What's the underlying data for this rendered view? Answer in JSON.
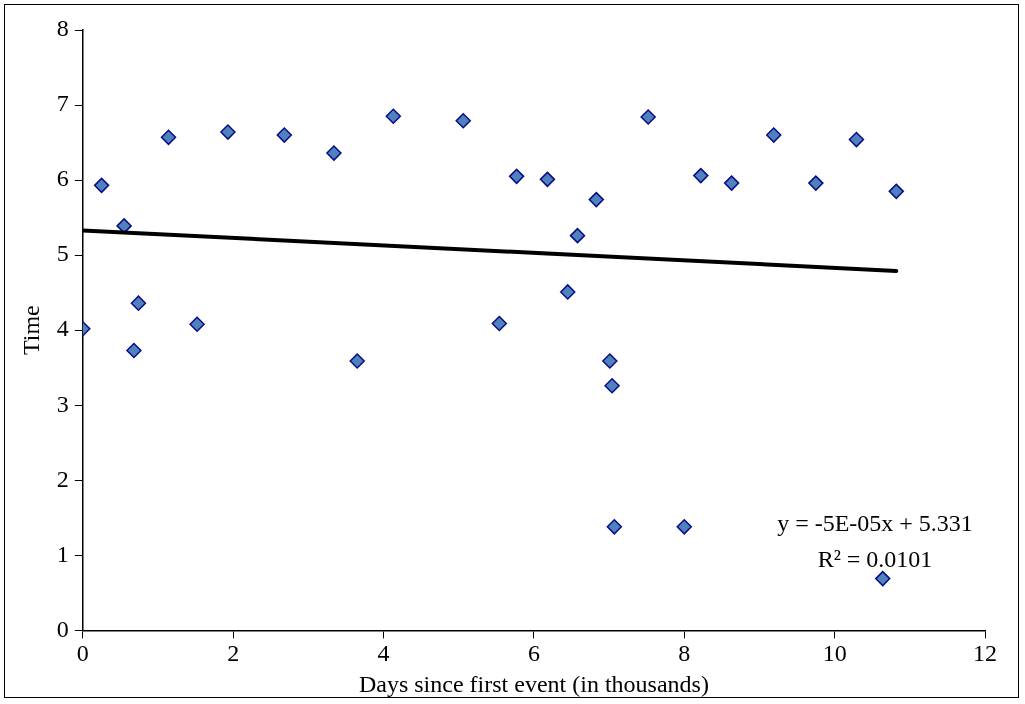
{
  "chart_data": {
    "type": "scatter",
    "xlabel": "Days since first event (in thousands)",
    "ylabel": "Time",
    "xlim": [
      0,
      12
    ],
    "xticks": [
      0,
      2,
      4,
      6,
      8,
      10,
      12
    ],
    "ylim": [
      0,
      8
    ],
    "yticks": [
      0,
      1,
      2,
      3,
      4,
      5,
      6,
      7,
      8
    ],
    "grid": false,
    "legend": false,
    "marker": "diamond",
    "annotations": [
      "y = -5E-05x + 5.331",
      "R² = 0.0101"
    ],
    "series": [
      {
        "color": "#4f81bd",
        "x": [
          0.0,
          0.25,
          0.55,
          0.68,
          0.74,
          1.14,
          1.52,
          1.93,
          2.68,
          3.34,
          3.65,
          4.13,
          5.06,
          5.54,
          5.77,
          6.18,
          6.45,
          6.58,
          6.83,
          7.01,
          7.04,
          7.07,
          7.52,
          8.0,
          8.22,
          8.63,
          9.19,
          9.75,
          10.29,
          10.64,
          10.82
        ],
        "values": [
          4.02,
          5.93,
          5.39,
          3.73,
          4.36,
          6.57,
          4.08,
          6.64,
          6.6,
          6.36,
          3.59,
          6.85,
          6.79,
          4.09,
          6.05,
          6.01,
          4.51,
          5.26,
          5.74,
          3.59,
          3.26,
          1.38,
          6.84,
          1.38,
          6.06,
          5.96,
          6.6,
          5.96,
          6.54,
          0.69,
          5.85
        ]
      },
      {
        "type": "line",
        "color": "#000000",
        "line_style": "solid",
        "marker": "none",
        "x": [
          0,
          10.82
        ],
        "values": [
          5.33,
          4.79
        ]
      }
    ]
  }
}
